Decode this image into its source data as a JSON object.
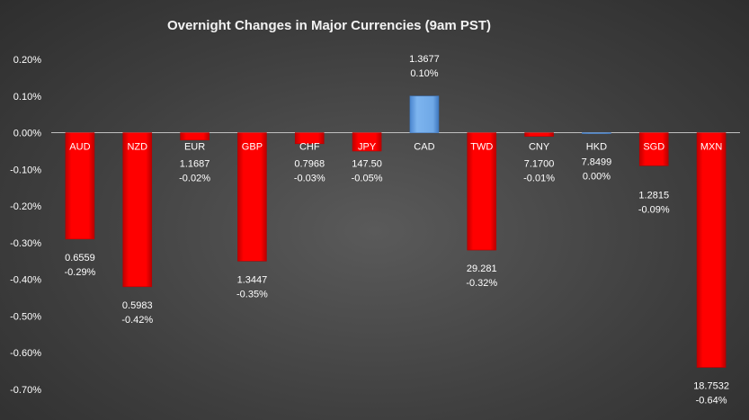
{
  "chart_data": {
    "type": "bar",
    "title": "Overnight Changes in Major Currencies (9am PST)",
    "xlabel": "",
    "ylabel": "",
    "ylim": [
      -0.7,
      0.2
    ],
    "y_ticks": [
      "0.20%",
      "0.10%",
      "0.00%",
      "-0.10%",
      "-0.20%",
      "-0.30%",
      "-0.40%",
      "-0.50%",
      "-0.60%",
      "-0.70%"
    ],
    "y_tick_values": [
      0.2,
      0.1,
      0.0,
      -0.1,
      -0.2,
      -0.3,
      -0.4,
      -0.5,
      -0.6,
      -0.7
    ],
    "categories": [
      "AUD",
      "NZD",
      "EUR",
      "GBP",
      "CHF",
      "JPY",
      "CAD",
      "TWD",
      "CNY",
      "HKD",
      "SGD",
      "MXN"
    ],
    "values": [
      -0.29,
      -0.42,
      -0.02,
      -0.35,
      -0.03,
      -0.05,
      0.1,
      -0.32,
      -0.01,
      0.0,
      -0.09,
      -0.64
    ],
    "rates": [
      "0.6559",
      "0.5983",
      "1.1687",
      "1.3447",
      "0.7968",
      "147.50",
      "1.3677",
      "29.281",
      "7.1700",
      "7.8499",
      "1.2815",
      "18.7532"
    ],
    "pct_labels": [
      "-0.29%",
      "-0.42%",
      "-0.02%",
      "-0.35%",
      "-0.03%",
      "-0.05%",
      "0.10%",
      "-0.32%",
      "-0.01%",
      "0.00%",
      "-0.09%",
      "-0.64%"
    ],
    "colors": {
      "negative": "#ff0000",
      "negative_dark": "#b80000",
      "positive": "#6fa8e6",
      "positive_dark": "#3f78c0",
      "zero_line": "#bfbfbf",
      "text": "#ffffff"
    },
    "grid": false,
    "legend": "none"
  }
}
